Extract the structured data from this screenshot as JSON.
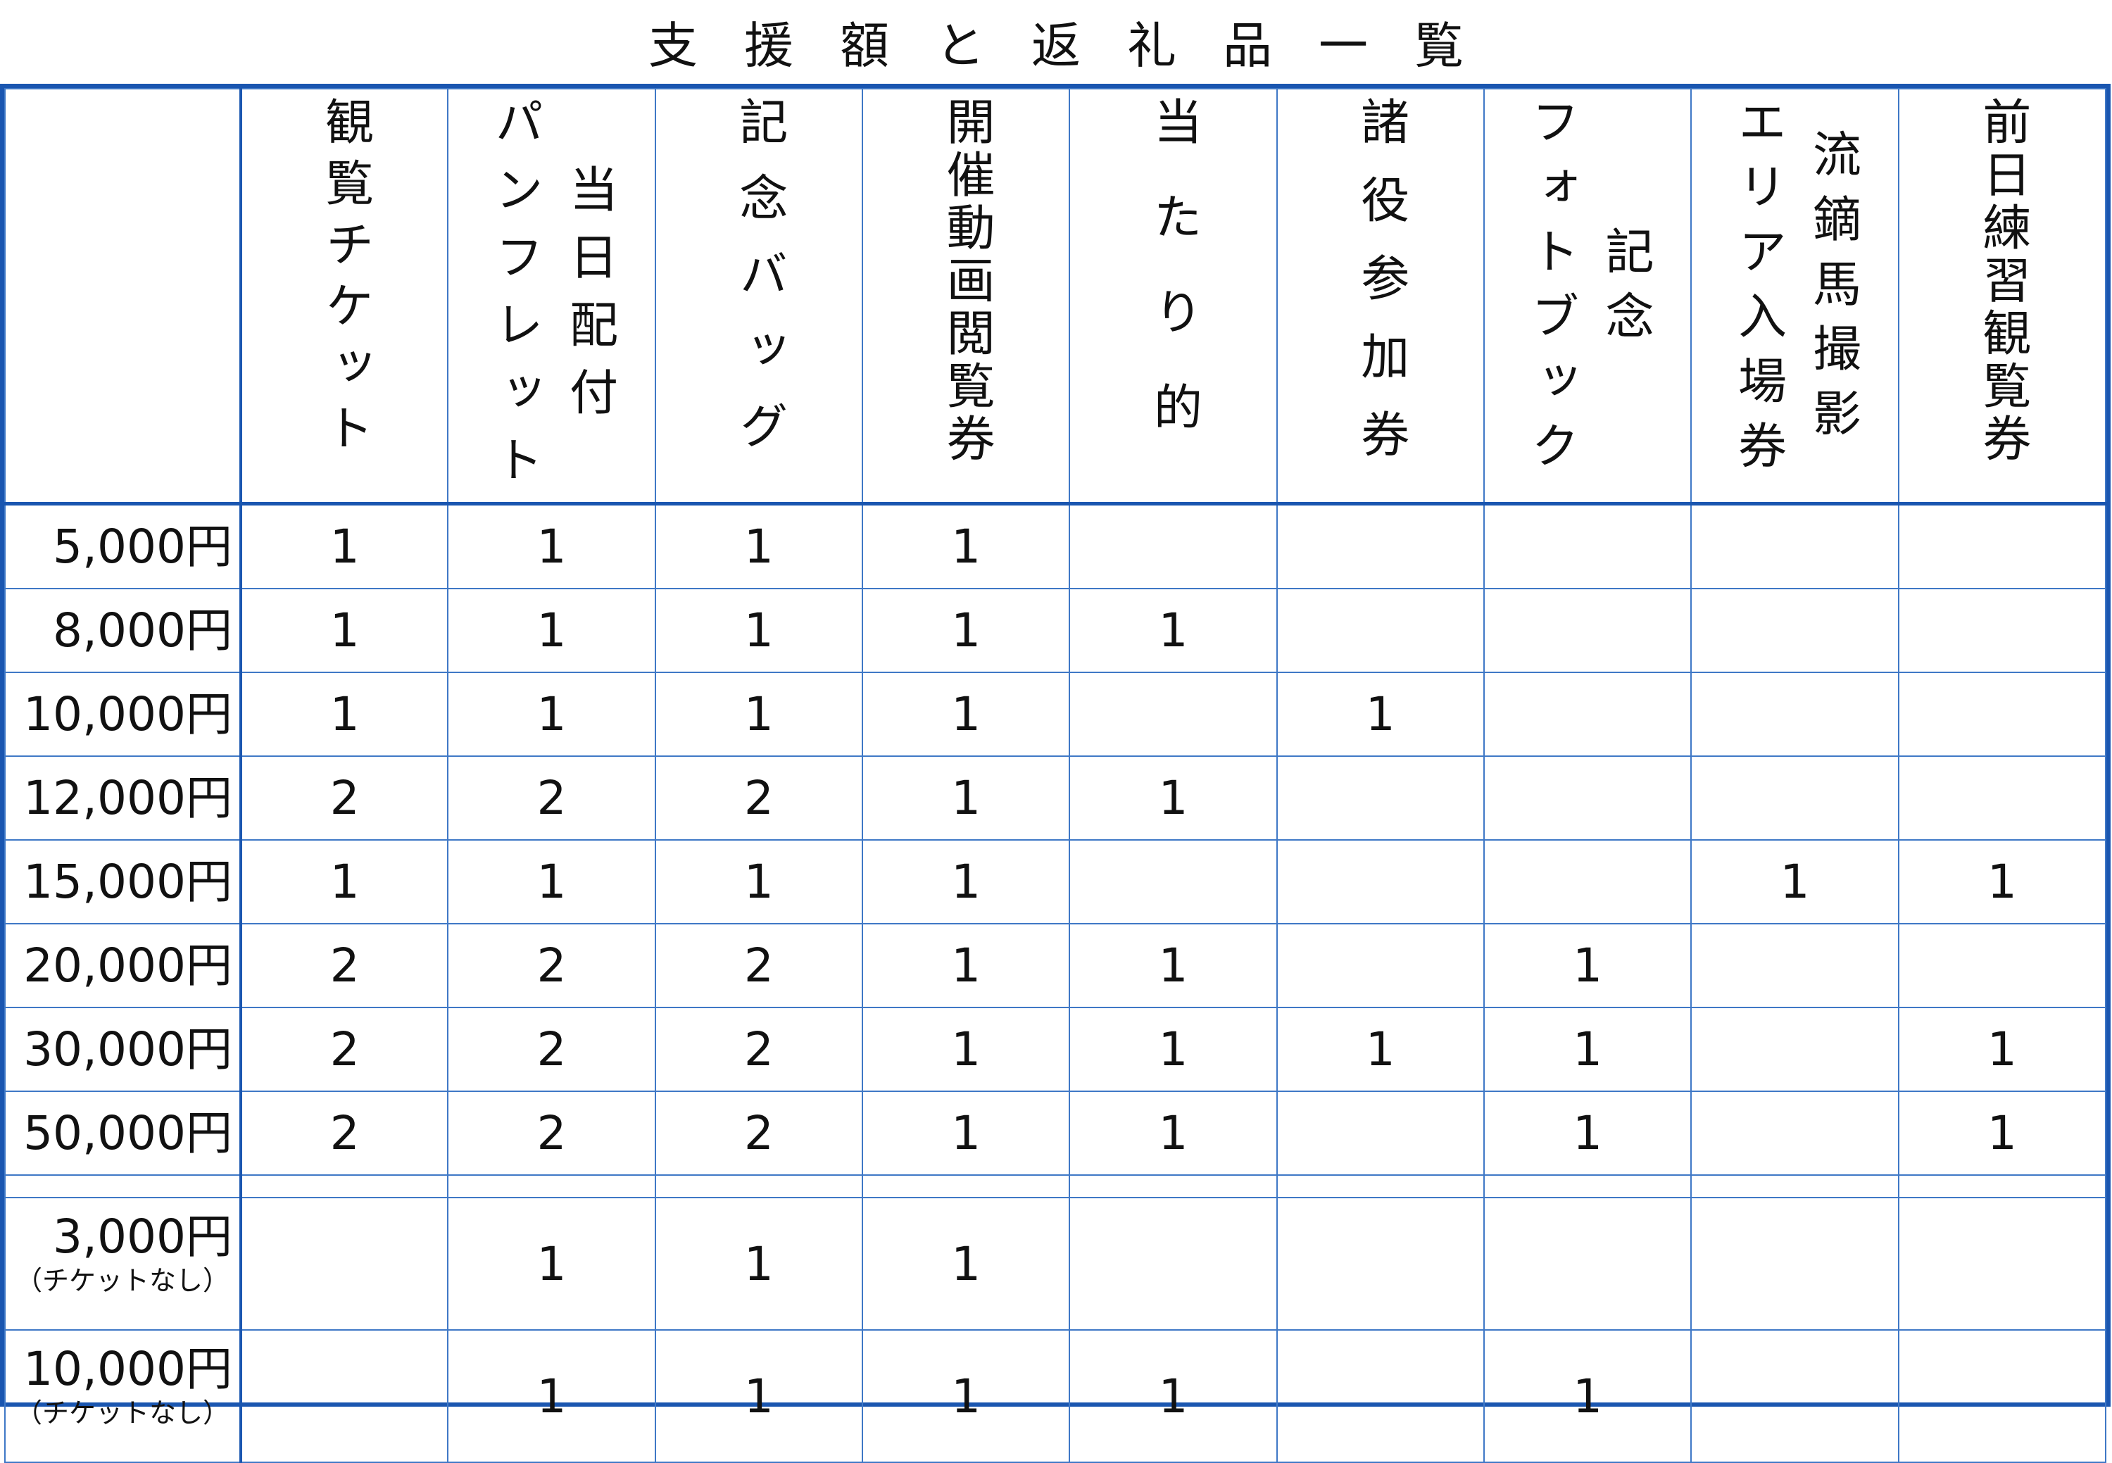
{
  "title": "支援額と返礼品一覧",
  "columns": [
    {
      "lines": [
        "観覧チケット"
      ]
    },
    {
      "lines": [
        "当日配付",
        "パンフレット"
      ]
    },
    {
      "lines": [
        "記念バッグ"
      ]
    },
    {
      "lines": [
        "開催動画閲覧券"
      ]
    },
    {
      "lines": [
        "当たり的"
      ]
    },
    {
      "lines": [
        "諸役参加券"
      ]
    },
    {
      "lines": [
        "記念",
        "フォトブック"
      ]
    },
    {
      "lines": [
        "流鏑馬撮影",
        "エリア入場券"
      ]
    },
    {
      "lines": [
        "前日練習観覧券"
      ]
    }
  ],
  "rows": [
    {
      "label": "5,000円",
      "values": [
        "1",
        "1",
        "1",
        "1",
        "",
        "",
        "",
        "",
        ""
      ]
    },
    {
      "label": "8,000円",
      "values": [
        "1",
        "1",
        "1",
        "1",
        "1",
        "",
        "",
        "",
        ""
      ]
    },
    {
      "label": "10,000円",
      "values": [
        "1",
        "1",
        "1",
        "1",
        "",
        "1",
        "",
        "",
        ""
      ]
    },
    {
      "label": "12,000円",
      "values": [
        "2",
        "2",
        "2",
        "1",
        "1",
        "",
        "",
        "",
        ""
      ]
    },
    {
      "label": "15,000円",
      "values": [
        "1",
        "1",
        "1",
        "1",
        "",
        "",
        "",
        "1",
        "1"
      ]
    },
    {
      "label": "20,000円",
      "values": [
        "2",
        "2",
        "2",
        "1",
        "1",
        "",
        "1",
        "",
        ""
      ]
    },
    {
      "label": "30,000円",
      "values": [
        "2",
        "2",
        "2",
        "1",
        "1",
        "1",
        "1",
        "",
        "1"
      ]
    },
    {
      "label": "50,000円",
      "values": [
        "2",
        "2",
        "2",
        "1",
        "1",
        "",
        "1",
        "",
        "1"
      ]
    }
  ],
  "extra_rows": [
    {
      "label": "3,000円",
      "sublabel": "（チケットなし）",
      "values": [
        "",
        "1",
        "1",
        "1",
        "",
        "",
        "",
        "",
        ""
      ]
    },
    {
      "label": "10,000円",
      "sublabel": "（チケットなし）",
      "values": [
        "",
        "1",
        "1",
        "1",
        "1",
        "",
        "1",
        "",
        ""
      ]
    }
  ],
  "colors": {
    "border": "#1a56b0",
    "grid": "#3f78c6"
  }
}
